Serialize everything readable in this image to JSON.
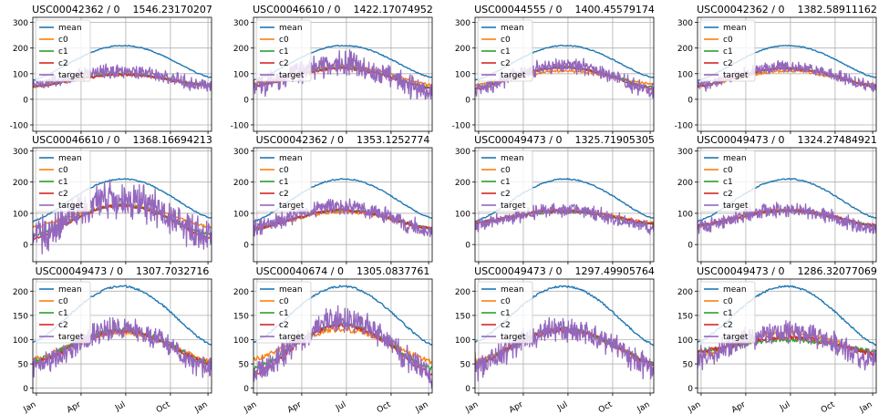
{
  "colors": {
    "mean": "#1f77b4",
    "c0": "#ff7f0e",
    "c1": "#2ca02c",
    "c2": "#d62728",
    "target": "#9467bd",
    "grid": "#b0b0b0",
    "axis": "#000000"
  },
  "chart_data": [
    {
      "type": "line",
      "title": "USC00042362 / 0    1546.23170207",
      "ylim": [
        -125,
        320
      ],
      "yticks": [
        -100,
        0,
        100,
        200,
        300
      ],
      "x_tick_labels": [
        "Jan",
        "Apr",
        "Jul",
        "Oct",
        "Jan"
      ],
      "show_x_tick_labels": false,
      "grid": true,
      "legend": "top-left",
      "mean_curve": {
        "start": 75,
        "peak": 210,
        "end": 85
      },
      "series": [
        {
          "name": "mean"
        },
        {
          "name": "c0",
          "level": [
            50,
            100,
            52
          ]
        },
        {
          "name": "c1",
          "level": [
            50,
            98,
            52
          ]
        },
        {
          "name": "c2",
          "level": [
            50,
            95,
            50
          ]
        },
        {
          "name": "target",
          "level": [
            55,
            110,
            45
          ],
          "amplitude": 40
        }
      ]
    },
    {
      "type": "line",
      "title": "USC00046610 / 0    1422.17074952",
      "ylim": [
        -125,
        320
      ],
      "yticks": [
        -100,
        0,
        100,
        200,
        300
      ],
      "x_tick_labels": [
        "Jan",
        "Apr",
        "Jul",
        "Oct",
        "Jan"
      ],
      "show_x_tick_labels": false,
      "grid": true,
      "legend": "top-left",
      "mean_curve": {
        "start": 75,
        "peak": 210,
        "end": 85
      },
      "series": [
        {
          "name": "mean"
        },
        {
          "name": "c0",
          "level": [
            60,
            130,
            55
          ]
        },
        {
          "name": "c1",
          "level": [
            55,
            125,
            45
          ]
        },
        {
          "name": "c2",
          "level": [
            50,
            120,
            40
          ]
        },
        {
          "name": "target",
          "level": [
            45,
            135,
            20
          ],
          "amplitude": 70
        }
      ]
    },
    {
      "type": "line",
      "title": "USC00044555 / 0    1400.45579174",
      "ylim": [
        -125,
        320
      ],
      "yticks": [
        -100,
        0,
        100,
        200,
        300
      ],
      "x_tick_labels": [
        "Jan",
        "Apr",
        "Jul",
        "Oct",
        "Jan"
      ],
      "show_x_tick_labels": false,
      "grid": true,
      "legend": "top-left",
      "mean_curve": {
        "start": 75,
        "peak": 210,
        "end": 85
      },
      "series": [
        {
          "name": "mean"
        },
        {
          "name": "c0",
          "level": [
            55,
            110,
            60
          ]
        },
        {
          "name": "c1",
          "level": [
            45,
            125,
            45
          ]
        },
        {
          "name": "c2",
          "level": [
            40,
            125,
            40
          ]
        },
        {
          "name": "target",
          "level": [
            35,
            130,
            30
          ],
          "amplitude": 45
        }
      ]
    },
    {
      "type": "line",
      "title": "USC00042362 / 0    1382.58911162",
      "ylim": [
        -125,
        320
      ],
      "yticks": [
        -100,
        0,
        100,
        200,
        300
      ],
      "x_tick_labels": [
        "Jan",
        "Apr",
        "Jul",
        "Oct",
        "Jan"
      ],
      "show_x_tick_labels": false,
      "grid": true,
      "legend": "top-left",
      "mean_curve": {
        "start": 75,
        "peak": 210,
        "end": 85
      },
      "series": [
        {
          "name": "mean"
        },
        {
          "name": "c0",
          "level": [
            50,
            110,
            55
          ]
        },
        {
          "name": "c1",
          "level": [
            50,
            120,
            50
          ]
        },
        {
          "name": "c2",
          "level": [
            50,
            120,
            50
          ]
        },
        {
          "name": "target",
          "level": [
            50,
            125,
            45
          ],
          "amplitude": 35
        }
      ]
    },
    {
      "type": "line",
      "title": "USC00046610 / 0    1368.16694213",
      "ylim": [
        -55,
        310
      ],
      "yticks": [
        0,
        100,
        200,
        300
      ],
      "x_tick_labels": [
        "Jan",
        "Apr",
        "Jul",
        "Oct",
        "Jan"
      ],
      "show_x_tick_labels": false,
      "grid": true,
      "legend": "top-left",
      "mean_curve": {
        "start": 75,
        "peak": 210,
        "end": 85
      },
      "series": [
        {
          "name": "mean"
        },
        {
          "name": "c0",
          "level": [
            55,
            125,
            55
          ]
        },
        {
          "name": "c1",
          "level": [
            30,
            125,
            30
          ]
        },
        {
          "name": "c2",
          "level": [
            20,
            125,
            20
          ]
        },
        {
          "name": "target",
          "level": [
            20,
            140,
            10
          ],
          "amplitude": 90
        }
      ]
    },
    {
      "type": "line",
      "title": "USC00042362 / 0    1353.1252774",
      "ylim": [
        -55,
        310
      ],
      "yticks": [
        0,
        100,
        200,
        300
      ],
      "x_tick_labels": [
        "Jan",
        "Apr",
        "Jul",
        "Oct",
        "Jan"
      ],
      "show_x_tick_labels": false,
      "grid": true,
      "legend": "top-left",
      "mean_curve": {
        "start": 75,
        "peak": 210,
        "end": 85
      },
      "series": [
        {
          "name": "mean"
        },
        {
          "name": "c0",
          "level": [
            50,
            105,
            50
          ]
        },
        {
          "name": "c1",
          "level": [
            50,
            110,
            50
          ]
        },
        {
          "name": "c2",
          "level": [
            50,
            110,
            50
          ]
        },
        {
          "name": "target",
          "level": [
            50,
            120,
            40
          ],
          "amplitude": 40
        }
      ]
    },
    {
      "type": "line",
      "title": "USC00049473 / 0    1325.71905305",
      "ylim": [
        -55,
        310
      ],
      "yticks": [
        0,
        100,
        200,
        300
      ],
      "x_tick_labels": [
        "Jan",
        "Apr",
        "Jul",
        "Oct",
        "Jan"
      ],
      "show_x_tick_labels": false,
      "grid": true,
      "legend": "top-left",
      "mean_curve": {
        "start": 75,
        "peak": 210,
        "end": 85
      },
      "series": [
        {
          "name": "mean"
        },
        {
          "name": "c0",
          "level": [
            70,
            110,
            70
          ]
        },
        {
          "name": "c1",
          "level": [
            70,
            105,
            65
          ]
        },
        {
          "name": "c2",
          "level": [
            70,
            108,
            65
          ]
        },
        {
          "name": "target",
          "level": [
            60,
            110,
            50
          ],
          "amplitude": 35
        }
      ]
    },
    {
      "type": "line",
      "title": "USC00049473 / 0    1324.27484921",
      "ylim": [
        -55,
        310
      ],
      "yticks": [
        0,
        100,
        200,
        300
      ],
      "x_tick_labels": [
        "Jan",
        "Apr",
        "Jul",
        "Oct",
        "Jan"
      ],
      "show_x_tick_labels": false,
      "grid": true,
      "legend": "top-left",
      "mean_curve": {
        "start": 75,
        "peak": 210,
        "end": 85
      },
      "series": [
        {
          "name": "mean"
        },
        {
          "name": "c0",
          "level": [
            60,
            110,
            60
          ]
        },
        {
          "name": "c1",
          "level": [
            60,
            108,
            58
          ]
        },
        {
          "name": "c2",
          "level": [
            60,
            110,
            60
          ]
        },
        {
          "name": "target",
          "level": [
            55,
            110,
            50
          ],
          "amplitude": 35
        }
      ]
    },
    {
      "type": "line",
      "title": "USC00049473 / 0    1307.7032716",
      "ylim": [
        -10,
        225
      ],
      "yticks": [
        0,
        50,
        100,
        150,
        200
      ],
      "x_tick_labels": [
        "Jan",
        "Apr",
        "Jul",
        "Oct",
        "Jan"
      ],
      "show_x_tick_labels": true,
      "grid": true,
      "legend": "top-left",
      "mean_curve": {
        "start": 95,
        "peak": 210,
        "end": 90
      },
      "series": [
        {
          "name": "mean"
        },
        {
          "name": "c0",
          "level": [
            60,
            115,
            55
          ]
        },
        {
          "name": "c1",
          "level": [
            55,
            120,
            50
          ]
        },
        {
          "name": "c2",
          "level": [
            50,
            118,
            50
          ]
        },
        {
          "name": "target",
          "level": [
            40,
            120,
            35
          ],
          "amplitude": 35
        }
      ]
    },
    {
      "type": "line",
      "title": "USC00040674 / 0    1305.0837761",
      "ylim": [
        -10,
        225
      ],
      "yticks": [
        0,
        50,
        100,
        150,
        200
      ],
      "x_tick_labels": [
        "Jan",
        "Apr",
        "Jul",
        "Oct",
        "Jan"
      ],
      "show_x_tick_labels": true,
      "grid": true,
      "legend": "top-left",
      "mean_curve": {
        "start": 95,
        "peak": 210,
        "end": 90
      },
      "series": [
        {
          "name": "mean"
        },
        {
          "name": "c0",
          "level": [
            60,
            120,
            55
          ]
        },
        {
          "name": "c1",
          "level": [
            40,
            130,
            40
          ]
        },
        {
          "name": "c2",
          "level": [
            30,
            130,
            30
          ]
        },
        {
          "name": "target",
          "level": [
            25,
            140,
            25
          ],
          "amplitude": 40
        }
      ]
    },
    {
      "type": "line",
      "title": "USC00049473 / 0    1297.49905764",
      "ylim": [
        -10,
        225
      ],
      "yticks": [
        0,
        50,
        100,
        150,
        200
      ],
      "x_tick_labels": [
        "Jan",
        "Apr",
        "Jul",
        "Oct",
        "Jan"
      ],
      "show_x_tick_labels": true,
      "grid": true,
      "legend": "top-left",
      "mean_curve": {
        "start": 95,
        "peak": 210,
        "end": 90
      },
      "series": [
        {
          "name": "mean"
        },
        {
          "name": "c0",
          "level": [
            55,
            120,
            50
          ]
        },
        {
          "name": "c1",
          "level": [
            50,
            122,
            50
          ]
        },
        {
          "name": "c2",
          "level": [
            50,
            120,
            50
          ]
        },
        {
          "name": "target",
          "level": [
            40,
            120,
            40
          ],
          "amplitude": 40
        }
      ]
    },
    {
      "type": "line",
      "title": "USC00049473 / 0    1286.32077069",
      "ylim": [
        -10,
        225
      ],
      "yticks": [
        0,
        50,
        100,
        150,
        200
      ],
      "x_tick_labels": [
        "Jan",
        "Apr",
        "Jul",
        "Oct",
        "Jan"
      ],
      "show_x_tick_labels": true,
      "grid": true,
      "legend": "top-left",
      "mean_curve": {
        "start": 95,
        "peak": 210,
        "end": 90
      },
      "series": [
        {
          "name": "mean"
        },
        {
          "name": "c0",
          "level": [
            65,
            115,
            70
          ]
        },
        {
          "name": "c1",
          "level": [
            75,
            100,
            75
          ]
        },
        {
          "name": "c2",
          "level": [
            75,
            105,
            70
          ]
        },
        {
          "name": "target",
          "level": [
            60,
            115,
            55
          ],
          "amplitude": 35
        }
      ]
    }
  ]
}
